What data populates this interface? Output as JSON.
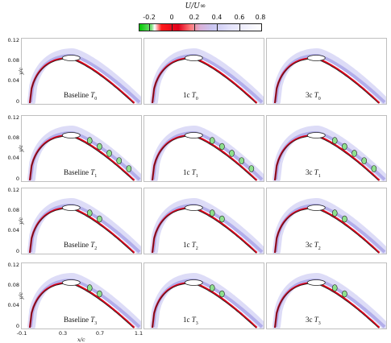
{
  "colorbar": {
    "title": "U/U∞",
    "ticks": [
      "-0.2",
      "0",
      "0.2",
      "0.4",
      "0.6",
      "0.8"
    ],
    "range": [
      -0.3,
      0.8
    ],
    "colors": [
      "#00c800",
      "#ffffff",
      "#e0001a",
      "#d9b0d8",
      "#c9c6f2",
      "#ffffff"
    ]
  },
  "axes": {
    "y_label": "y/c",
    "y_ticks": [
      "0.12",
      "0.08",
      "0.04",
      "0"
    ],
    "x_label": "x/c",
    "x_ticks": [
      "-0.1",
      "0.3",
      "0.7",
      "1.1"
    ]
  },
  "rows": [
    {
      "panels": [
        {
          "prefix": "Baseline",
          "case": "T",
          "sub": "0"
        },
        {
          "prefix": "1c",
          "case": "T",
          "sub": "0"
        },
        {
          "prefix": "3c",
          "case": "T",
          "sub": "0"
        }
      ]
    },
    {
      "panels": [
        {
          "prefix": "Baseline",
          "case": "T",
          "sub": "1"
        },
        {
          "prefix": "1c",
          "case": "T",
          "sub": "1"
        },
        {
          "prefix": "3c",
          "case": "T",
          "sub": "1"
        }
      ]
    },
    {
      "panels": [
        {
          "prefix": "Baseline",
          "case": "T",
          "sub": "2"
        },
        {
          "prefix": "1c",
          "case": "T",
          "sub": "2"
        },
        {
          "prefix": "3c",
          "case": "T",
          "sub": "2"
        }
      ]
    },
    {
      "panels": [
        {
          "prefix": "Baseline",
          "case": "T",
          "sub": "3"
        },
        {
          "prefix": "1c",
          "case": "T",
          "sub": "3"
        },
        {
          "prefix": "3c",
          "case": "T",
          "sub": "3"
        }
      ]
    }
  ]
}
